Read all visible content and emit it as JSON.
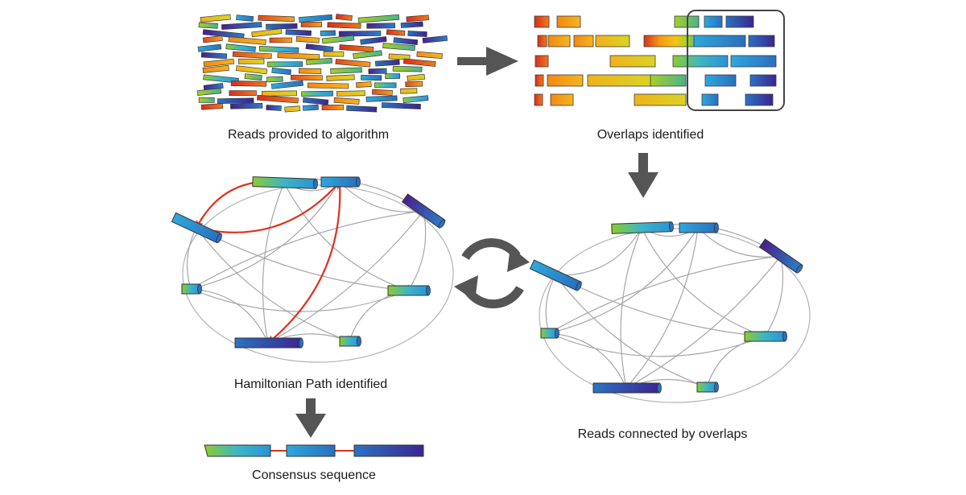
{
  "captions": {
    "reads": "Reads provided to algorithm",
    "overlaps": "Overlaps identified",
    "hamiltonian": "Hamiltonian Path identified",
    "connected": "Reads connected by overlaps",
    "consensus": "Consensus sequence"
  },
  "colors": {
    "arrow": "#555555",
    "edge": "#a6a6a6",
    "path": "#e0301e",
    "read_stroke": "#3a3a3a",
    "gradient_stops": [
      "#d7301f",
      "#f39c12",
      "#f2c418",
      "#9ccf2a",
      "#2aa5d8",
      "#2767b8",
      "#3a1f8c"
    ]
  },
  "icons": [
    "right-arrow-icon",
    "down-arrow-icon",
    "cycle-arrows-icon"
  ]
}
